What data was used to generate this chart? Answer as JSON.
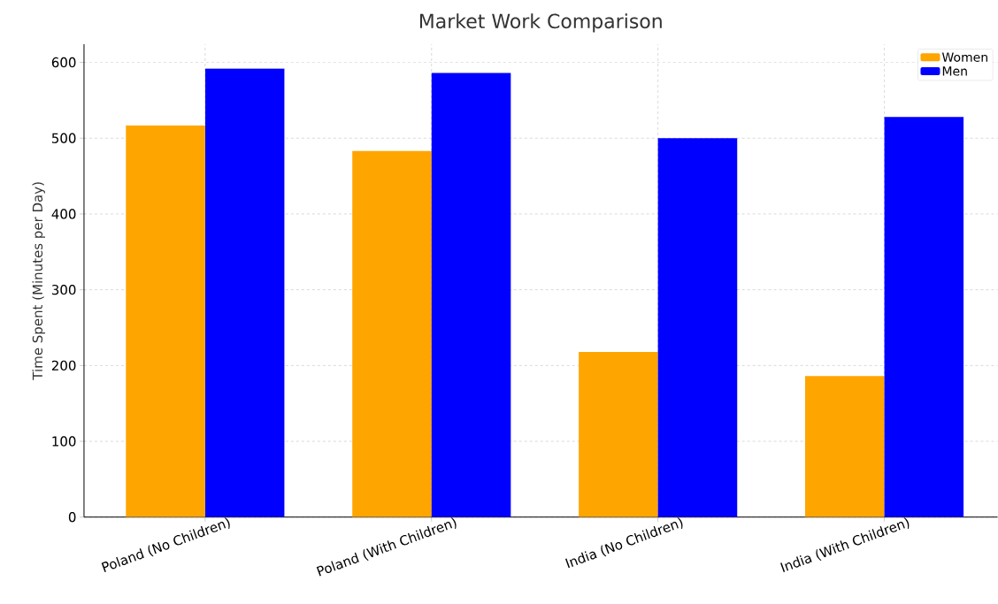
{
  "chart_data": {
    "type": "bar",
    "title": "Market Work Comparison",
    "ylabel": "Time Spent (Minutes per Day)",
    "categories": [
      "Poland (No Children)",
      "Poland (With Children)",
      "India (No Children)",
      "India (With Children)"
    ],
    "series": [
      {
        "name": "Women",
        "color": "#ffa500",
        "values": [
          517,
          483,
          218,
          186
        ]
      },
      {
        "name": "Men",
        "color": "#0000ff",
        "values": [
          592,
          586,
          500,
          528
        ]
      }
    ],
    "ylim": [
      0,
      624
    ],
    "yticks": [
      0,
      100,
      200,
      300,
      400,
      500,
      600
    ],
    "grid": true,
    "legend": "top right"
  }
}
